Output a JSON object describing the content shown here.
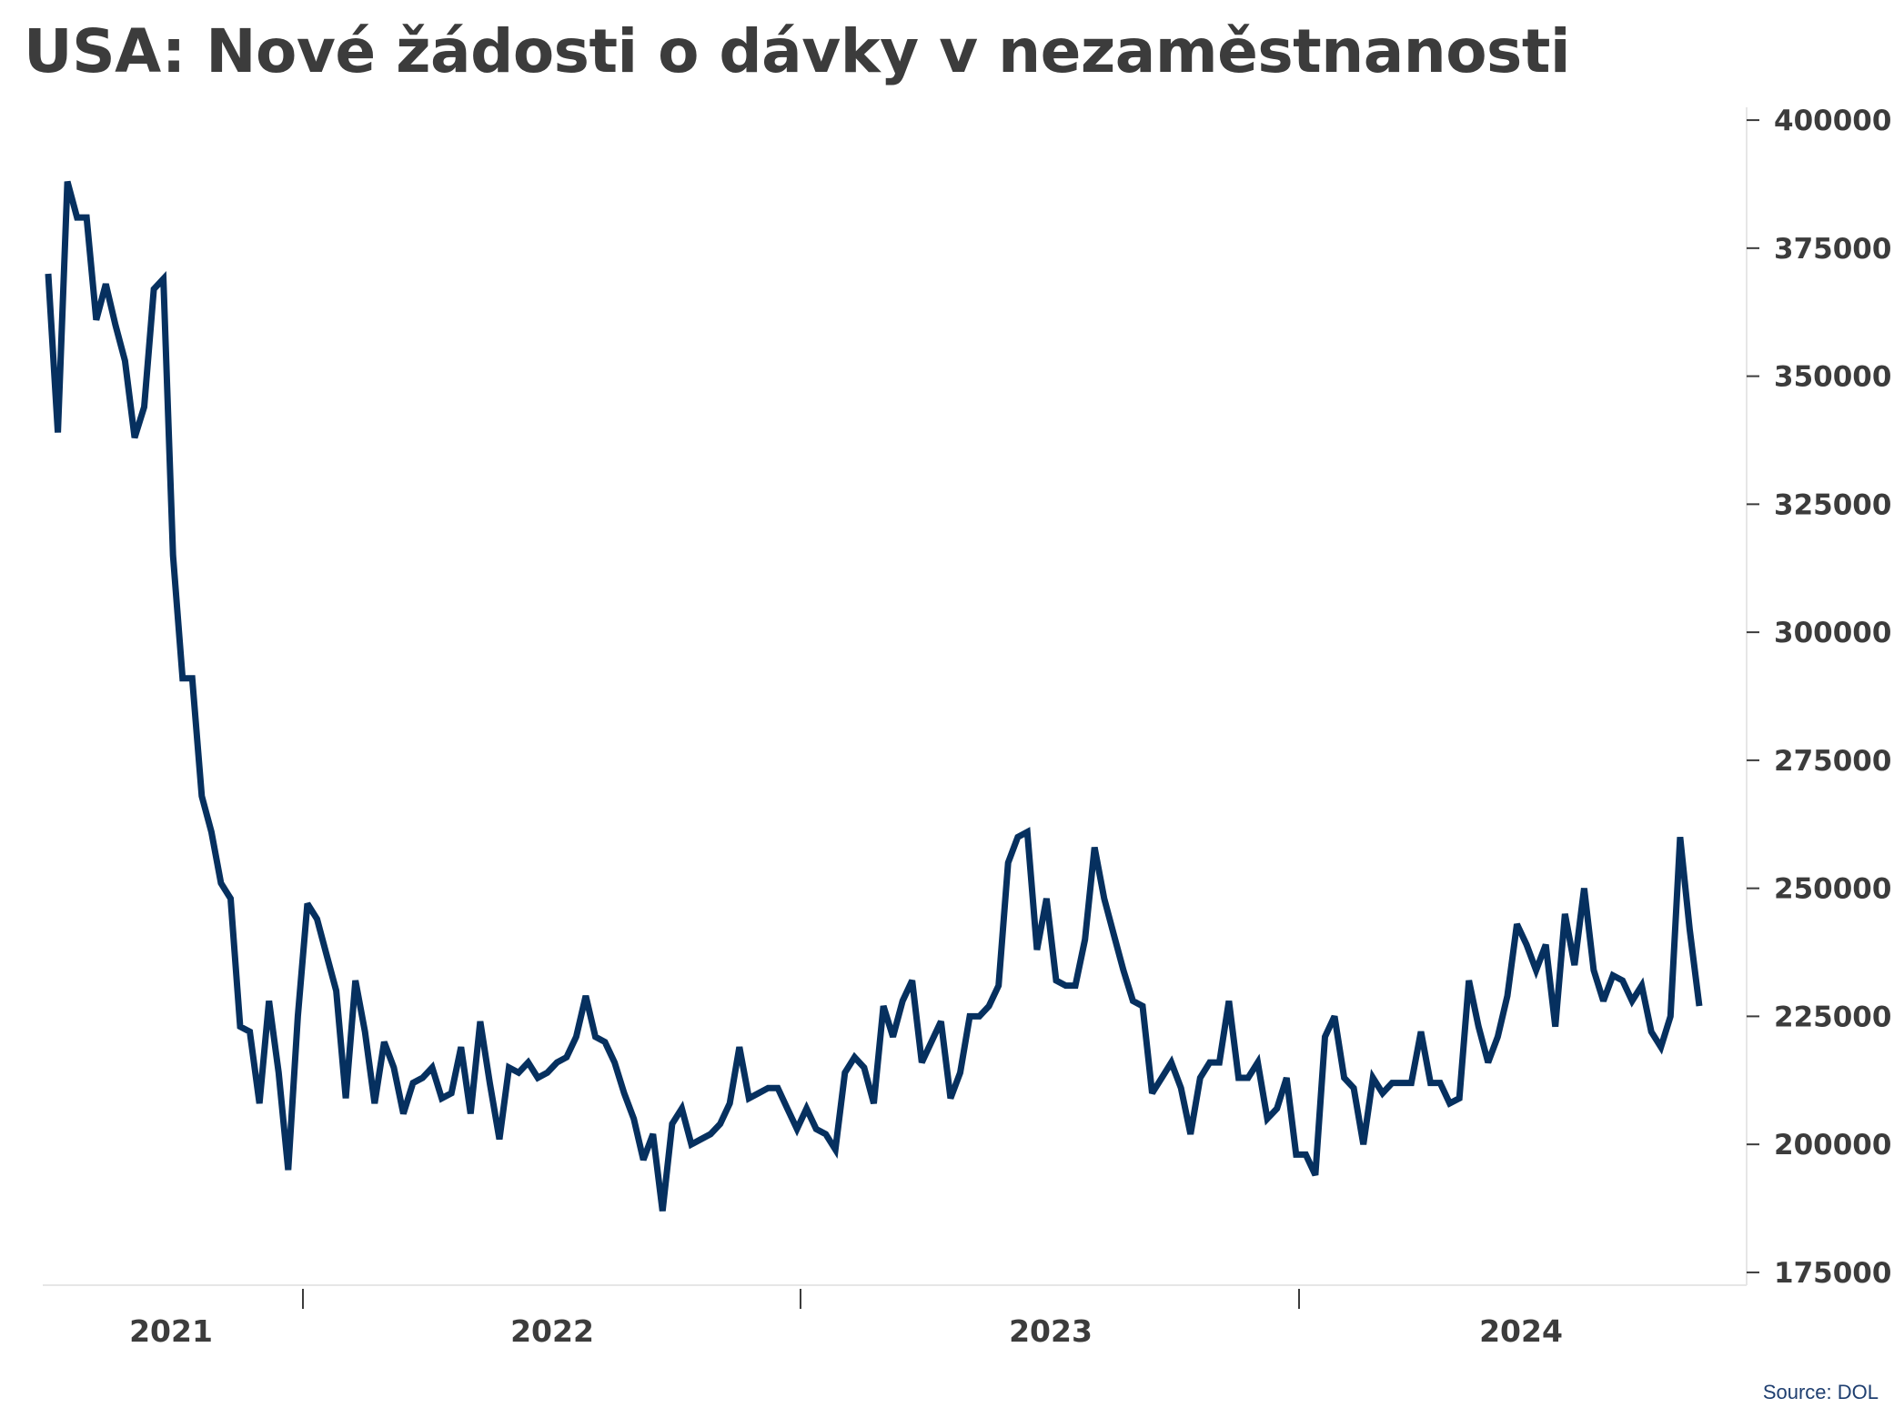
{
  "title": "USA: Nové žádosti o dávky v nezaměstnanosti",
  "source": "Source: DOL",
  "colors": {
    "line": "#06305f",
    "text": "#3c3c3c",
    "axis": "#e6e6e6",
    "tick": "#3c3c3c",
    "source": "#1f3f70"
  },
  "chart_data": {
    "type": "line",
    "title": "USA: Nové žádosti o dávky v nezaměstnanosti",
    "xlabel": "",
    "ylabel": "",
    "y_axis_side": "right",
    "ylim": [
      172500,
      402500
    ],
    "y_ticks": [
      175000,
      200000,
      225000,
      250000,
      275000,
      300000,
      325000,
      350000,
      375000,
      400000
    ],
    "y_tick_labels": [
      "175000",
      "200000",
      "225000",
      "250000",
      "275000",
      "300000",
      "325000",
      "350000",
      "375000",
      "400000"
    ],
    "x_labels": [
      "2021",
      "2022",
      "2023",
      "2024"
    ],
    "grid": false,
    "legend": "none",
    "series": [
      {
        "values": [
          370000,
          339000,
          388000,
          381000,
          381000,
          361000,
          368000,
          360000,
          353000,
          338000,
          344000,
          367000,
          369000,
          315000,
          291000,
          291000,
          268000,
          261000,
          251000,
          248000,
          223000,
          222000,
          208000,
          228000,
          214000,
          195000,
          225000,
          247000,
          244000,
          237000,
          230000,
          209000,
          232000,
          222000,
          208000,
          220000,
          215000,
          206000,
          212000,
          213000,
          215000,
          209000,
          210000,
          219000,
          206000,
          224000,
          212000,
          201000,
          215000,
          214000,
          216000,
          213000,
          214000,
          216000,
          217000,
          221000,
          229000,
          221000,
          220000,
          216000,
          210000,
          205000,
          197000,
          202000,
          187000,
          204000,
          207000,
          200000,
          201000,
          202000,
          204000,
          208000,
          219000,
          209000,
          210000,
          211000,
          211000,
          207000,
          203000,
          207000,
          203000,
          202000,
          199000,
          214000,
          217000,
          215000,
          208000,
          227000,
          221000,
          228000,
          232000,
          216000,
          220000,
          224000,
          209000,
          214000,
          225000,
          225000,
          227000,
          231000,
          255000,
          260000,
          261000,
          238000,
          248000,
          232000,
          231000,
          231000,
          240000,
          258000,
          248000,
          241000,
          234000,
          228000,
          227000,
          210000,
          213000,
          216000,
          211000,
          202000,
          213000,
          216000,
          216000,
          228000,
          213000,
          213000,
          216000,
          205000,
          207000,
          213000,
          198000,
          198000,
          194000,
          221000,
          225000,
          213000,
          211000,
          200000,
          213000,
          210000,
          212000,
          212000,
          212000,
          222000,
          212000,
          212000,
          208000,
          209000,
          232000,
          223000,
          216000,
          221000,
          229000,
          243000,
          239000,
          234000,
          239000,
          223000,
          245000,
          235000,
          250000,
          234000,
          228000,
          233000,
          232000,
          228000,
          231000,
          222000,
          219000,
          225000,
          260000,
          242000,
          227000
        ]
      }
    ]
  }
}
